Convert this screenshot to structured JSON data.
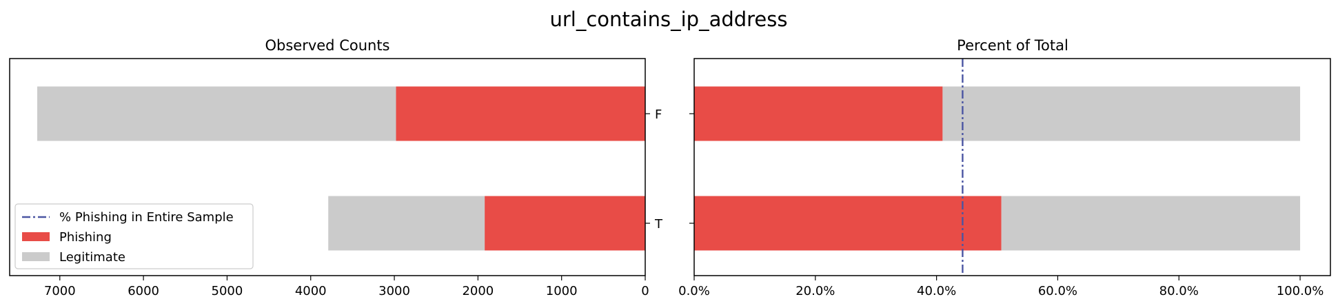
{
  "figure": {
    "title": "url_contains_ip_address"
  },
  "colors": {
    "phishing": "#e84c47",
    "legitimate": "#cbcbcb",
    "overall_line": "#4a55a2"
  },
  "chart_data": [
    {
      "type": "bar",
      "orientation": "horizontal",
      "stacked": true,
      "title": "Observed Counts",
      "x_inverted": true,
      "xlim": [
        7600,
        0
      ],
      "xticks": [
        7000,
        6000,
        5000,
        4000,
        3000,
        2000,
        1000,
        0
      ],
      "xtick_labels": [
        "7000",
        "6000",
        "5000",
        "4000",
        "3000",
        "2000",
        "1000",
        "0"
      ],
      "categories": [
        "F",
        "T"
      ],
      "series": [
        {
          "name": "Phishing",
          "values": [
            2980,
            1920
          ]
        },
        {
          "name": "Legitimate",
          "values": [
            4290,
            1870
          ]
        }
      ],
      "legend": {
        "position": "lower left",
        "entries": [
          "% Phishing in Entire Sample",
          "Phishing",
          "Legitimate"
        ]
      },
      "grid": false
    },
    {
      "type": "bar",
      "orientation": "horizontal",
      "stacked": true,
      "title": "Percent of Total",
      "xlim": [
        0,
        1.05
      ],
      "xticks": [
        0,
        0.2,
        0.4,
        0.6,
        0.8,
        1.0
      ],
      "xtick_labels": [
        "0.0%",
        "20.0%",
        "40.0%",
        "60.0%",
        "80.0%",
        "100.0%"
      ],
      "categories": [
        "F",
        "T"
      ],
      "series": [
        {
          "name": "Phishing",
          "values": [
            0.41,
            0.507
          ]
        },
        {
          "name": "Legitimate",
          "values": [
            0.59,
            0.493
          ]
        }
      ],
      "reference_line": {
        "name": "% Phishing in Entire Sample",
        "value": 0.443
      },
      "grid": false
    }
  ]
}
